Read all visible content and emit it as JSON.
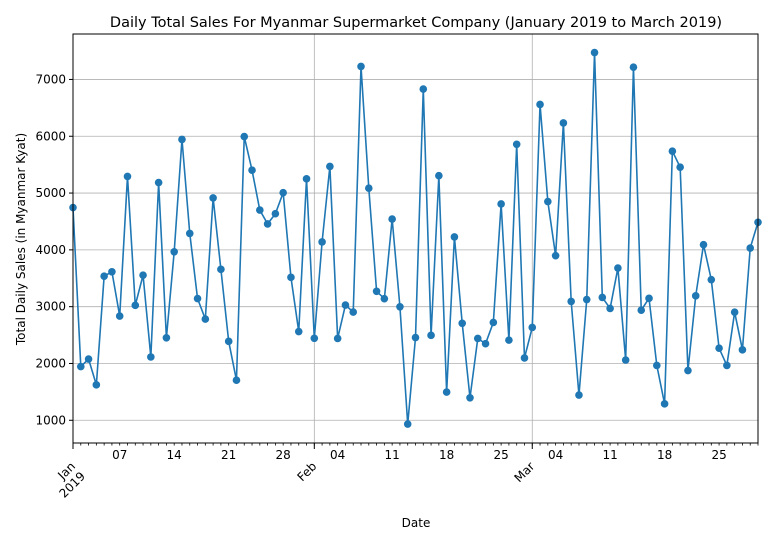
{
  "chart_data": {
    "type": "line",
    "title": "Daily Total Sales For Myanmar Supermarket Company (January 2019 to March 2019)",
    "xlabel": "Date",
    "ylabel": "Total Daily Sales (in Myanmar Kyat)",
    "x_start": "2019-01-01",
    "x_end": "2019-03-30",
    "ylim": [
      600,
      7800
    ],
    "yticks": [
      1000,
      2000,
      3000,
      4000,
      5000,
      6000,
      7000
    ],
    "xticks_minor": [
      {
        "date": "2019-01-07",
        "label": "07"
      },
      {
        "date": "2019-01-14",
        "label": "14"
      },
      {
        "date": "2019-01-21",
        "label": "21"
      },
      {
        "date": "2019-01-28",
        "label": "28"
      },
      {
        "date": "2019-02-04",
        "label": "04"
      },
      {
        "date": "2019-02-11",
        "label": "11"
      },
      {
        "date": "2019-02-18",
        "label": "18"
      },
      {
        "date": "2019-02-25",
        "label": "25"
      },
      {
        "date": "2019-03-04",
        "label": "04"
      },
      {
        "date": "2019-03-11",
        "label": "11"
      },
      {
        "date": "2019-03-18",
        "label": "18"
      },
      {
        "date": "2019-03-25",
        "label": "25"
      }
    ],
    "xticks_major": [
      {
        "date": "2019-01-01",
        "label": [
          "Jan",
          "2019"
        ]
      },
      {
        "date": "2019-02-01",
        "label": [
          "Feb"
        ]
      },
      {
        "date": "2019-03-01",
        "label": [
          "Mar"
        ]
      }
    ],
    "grid": true,
    "series": [
      {
        "color": "#1f77b4",
        "x": [
          "2019-01-01",
          "2019-01-02",
          "2019-01-03",
          "2019-01-04",
          "2019-01-05",
          "2019-01-06",
          "2019-01-07",
          "2019-01-08",
          "2019-01-09",
          "2019-01-10",
          "2019-01-11",
          "2019-01-12",
          "2019-01-13",
          "2019-01-14",
          "2019-01-15",
          "2019-01-16",
          "2019-01-17",
          "2019-01-18",
          "2019-01-19",
          "2019-01-20",
          "2019-01-21",
          "2019-01-22",
          "2019-01-23",
          "2019-01-24",
          "2019-01-25",
          "2019-01-26",
          "2019-01-27",
          "2019-01-28",
          "2019-01-29",
          "2019-01-30",
          "2019-01-31",
          "2019-02-01",
          "2019-02-02",
          "2019-02-03",
          "2019-02-04",
          "2019-02-05",
          "2019-02-06",
          "2019-02-07",
          "2019-02-08",
          "2019-02-09",
          "2019-02-10",
          "2019-02-11",
          "2019-02-12",
          "2019-02-13",
          "2019-02-14",
          "2019-02-15",
          "2019-02-16",
          "2019-02-17",
          "2019-02-18",
          "2019-02-19",
          "2019-02-20",
          "2019-02-21",
          "2019-02-22",
          "2019-02-23",
          "2019-02-24",
          "2019-02-25",
          "2019-02-26",
          "2019-02-27",
          "2019-02-28",
          "2019-03-01",
          "2019-03-02",
          "2019-03-03",
          "2019-03-04",
          "2019-03-05",
          "2019-03-06",
          "2019-03-07",
          "2019-03-08",
          "2019-03-09",
          "2019-03-10",
          "2019-03-11",
          "2019-03-12",
          "2019-03-13",
          "2019-03-14",
          "2019-03-15",
          "2019-03-16",
          "2019-03-17",
          "2019-03-18",
          "2019-03-19",
          "2019-03-20",
          "2019-03-21",
          "2019-03-22",
          "2019-03-23",
          "2019-03-24",
          "2019-03-25",
          "2019-03-26",
          "2019-03-27",
          "2019-03-28",
          "2019-03-29",
          "2019-03-30"
        ],
        "values": [
          4745,
          1945,
          2078,
          1624,
          3537,
          3614,
          2835,
          5293,
          3023,
          3555,
          2114,
          5184,
          2452,
          3966,
          5944,
          4290,
          3143,
          2781,
          4915,
          3657,
          2390,
          1705,
          5994,
          5402,
          4700,
          4457,
          4636,
          5006,
          3516,
          2562,
          5250,
          2444,
          4140,
          5468,
          2440,
          3029,
          2905,
          7229,
          5085,
          3271,
          3140,
          4542,
          2998,
          934,
          2457,
          6830,
          2495,
          5305,
          1496,
          4228,
          2708,
          1396,
          2440,
          2348,
          2722,
          4808,
          2411,
          5859,
          2097,
          2634,
          6560,
          4851,
          3898,
          6234,
          3093,
          1444,
          3126,
          7474,
          3163,
          2968,
          3680,
          2061,
          7215,
          2938,
          3147,
          1966,
          1289,
          5738,
          5455,
          1876,
          3191,
          4091,
          3476,
          2269,
          1966,
          2903,
          2240,
          4032,
          4486
        ]
      }
    ]
  }
}
